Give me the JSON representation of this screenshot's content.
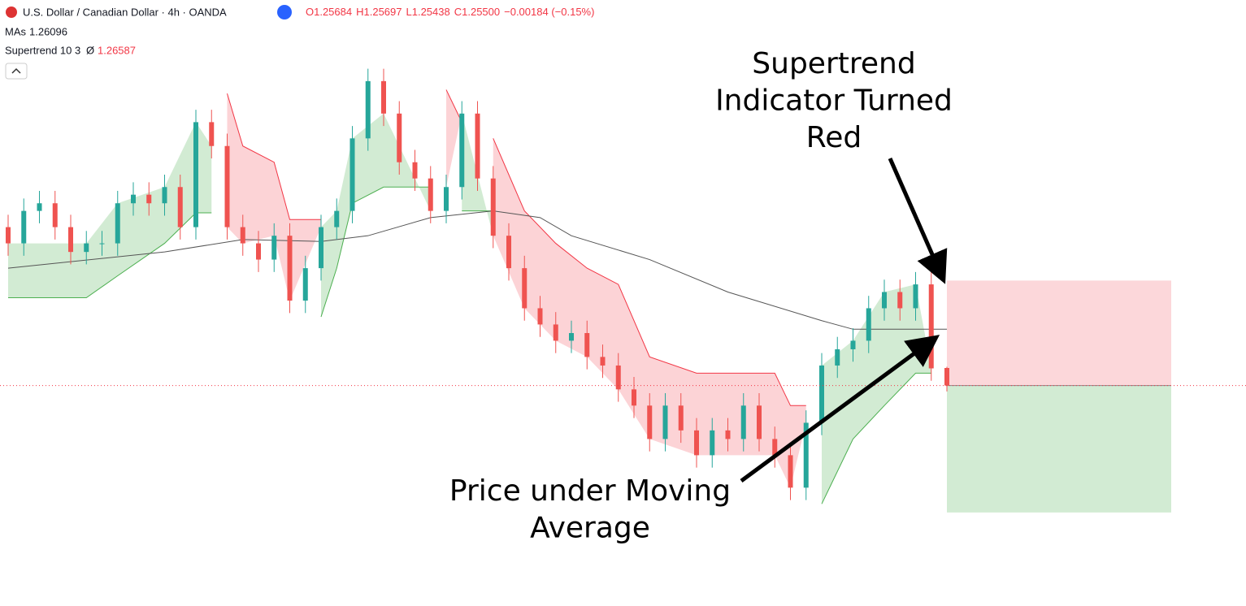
{
  "header": {
    "title": "U.S. Dollar / Canadian Dollar · 4h · OANDA",
    "ohlc": [
      "O1.25684",
      "H1.25697",
      "L1.25438",
      "C1.25500",
      "−0.00184 (−0.15%)"
    ],
    "ma_label": "MAs",
    "ma_value": 1.26096,
    "st_label": "Supertrend 10 3",
    "st_sep": "Ø",
    "st_value": 1.26587
  },
  "chart_data": {
    "type": "candlestick",
    "ylim": [
      1.2319,
      1.2954
    ],
    "up_color": "#26a69a",
    "down_color": "#ef5350",
    "candles": [
      [
        1.2716,
        1.2729,
        1.2686,
        1.2699
      ],
      [
        1.2699,
        1.2746,
        1.2686,
        1.2733
      ],
      [
        1.2733,
        1.2754,
        1.272,
        1.2741
      ],
      [
        1.2741,
        1.2754,
        1.2703,
        1.2716
      ],
      [
        1.2716,
        1.2729,
        1.2677,
        1.269
      ],
      [
        1.269,
        1.2712,
        1.2677,
        1.2699
      ],
      [
        1.2699,
        1.2712,
        1.2686,
        1.2699
      ],
      [
        1.2699,
        1.2754,
        1.2686,
        1.2741
      ],
      [
        1.2741,
        1.2763,
        1.2728,
        1.275
      ],
      [
        1.275,
        1.2763,
        1.2728,
        1.2741
      ],
      [
        1.2741,
        1.2771,
        1.2728,
        1.2758
      ],
      [
        1.2758,
        1.2771,
        1.2703,
        1.2716
      ],
      [
        1.2716,
        1.2839,
        1.2703,
        1.2826
      ],
      [
        1.2826,
        1.2839,
        1.2788,
        1.2801
      ],
      [
        1.2801,
        1.2814,
        1.2703,
        1.2716
      ],
      [
        1.2716,
        1.2729,
        1.2686,
        1.2699
      ],
      [
        1.2699,
        1.2712,
        1.2669,
        1.2682
      ],
      [
        1.2682,
        1.272,
        1.2669,
        1.2707
      ],
      [
        1.2707,
        1.272,
        1.2626,
        1.2639
      ],
      [
        1.2639,
        1.2686,
        1.2626,
        1.2673
      ],
      [
        1.2673,
        1.2729,
        1.266,
        1.2716
      ],
      [
        1.2716,
        1.2746,
        1.2703,
        1.2733
      ],
      [
        1.2733,
        1.2822,
        1.272,
        1.2809
      ],
      [
        1.2809,
        1.2882,
        1.2796,
        1.2869
      ],
      [
        1.2869,
        1.2882,
        1.2822,
        1.2835
      ],
      [
        1.2835,
        1.2848,
        1.2771,
        1.2784
      ],
      [
        1.2784,
        1.2797,
        1.2754,
        1.2767
      ],
      [
        1.2767,
        1.278,
        1.272,
        1.2733
      ],
      [
        1.2733,
        1.2771,
        1.272,
        1.2758
      ],
      [
        1.2758,
        1.2848,
        1.2745,
        1.2835
      ],
      [
        1.2835,
        1.2848,
        1.2754,
        1.2767
      ],
      [
        1.2767,
        1.278,
        1.2694,
        1.2707
      ],
      [
        1.2707,
        1.272,
        1.266,
        1.2673
      ],
      [
        1.2673,
        1.2686,
        1.2618,
        1.2631
      ],
      [
        1.2631,
        1.2644,
        1.2601,
        1.2614
      ],
      [
        1.2614,
        1.2627,
        1.2584,
        1.2597
      ],
      [
        1.2597,
        1.2618,
        1.2584,
        1.2605
      ],
      [
        1.2605,
        1.2618,
        1.2567,
        1.258
      ],
      [
        1.258,
        1.2593,
        1.2558,
        1.2571
      ],
      [
        1.2571,
        1.2584,
        1.2533,
        1.2546
      ],
      [
        1.2546,
        1.2559,
        1.2516,
        1.2529
      ],
      [
        1.2529,
        1.2542,
        1.2481,
        1.2494
      ],
      [
        1.2494,
        1.2542,
        1.2481,
        1.2529
      ],
      [
        1.2529,
        1.2542,
        1.249,
        1.2503
      ],
      [
        1.2503,
        1.2516,
        1.2464,
        1.2477
      ],
      [
        1.2477,
        1.2516,
        1.2464,
        1.2503
      ],
      [
        1.2503,
        1.2516,
        1.2481,
        1.2494
      ],
      [
        1.2494,
        1.2542,
        1.2481,
        1.2529
      ],
      [
        1.2529,
        1.2542,
        1.2481,
        1.2494
      ],
      [
        1.2494,
        1.2507,
        1.2464,
        1.2477
      ],
      [
        1.2477,
        1.249,
        1.243,
        1.2443
      ],
      [
        1.2443,
        1.2524,
        1.243,
        1.2511
      ],
      [
        1.2511,
        1.2584,
        1.2498,
        1.2571
      ],
      [
        1.2571,
        1.2601,
        1.2558,
        1.2588
      ],
      [
        1.2588,
        1.261,
        1.2575,
        1.2597
      ],
      [
        1.2597,
        1.2644,
        1.2584,
        1.2631
      ],
      [
        1.2631,
        1.2661,
        1.2618,
        1.2648
      ],
      [
        1.2648,
        1.2661,
        1.2618,
        1.2631
      ],
      [
        1.2631,
        1.2669,
        1.2618,
        1.2656
      ],
      [
        1.2656,
        1.2669,
        1.2555,
        1.2568
      ],
      [
        1.25684,
        1.25697,
        1.25438,
        1.255
      ]
    ],
    "ma": {
      "color": "#555555",
      "x": [
        0,
        10,
        15,
        20,
        23,
        27,
        31,
        34,
        36,
        41,
        46,
        52,
        54,
        60
      ],
      "values": [
        1.2673,
        1.269,
        1.2703,
        1.2701,
        1.2707,
        1.2726,
        1.2733,
        1.2726,
        1.2707,
        1.2682,
        1.2648,
        1.2618,
        1.2609,
        1.2609
      ]
    },
    "supertrend": [
      {
        "color": "#4caf50",
        "fill": "rgba(76,175,80,0.25)",
        "x": [
          0,
          5,
          7,
          10,
          12,
          13,
          null,
          20,
          21,
          22,
          24,
          27,
          null,
          29,
          31,
          null,
          52,
          54,
          56,
          58,
          59
        ],
        "values": [
          1.2642,
          1.2642,
          1.2665,
          1.2699,
          1.2731,
          1.2731,
          null,
          1.2622,
          1.2673,
          1.2741,
          1.2758,
          1.2758,
          null,
          1.2733,
          1.2733,
          null,
          1.2426,
          1.2494,
          1.2529,
          1.2563,
          1.2563
        ]
      },
      {
        "color": "#f23645",
        "fill": "rgba(242,54,69,0.22)",
        "x": [
          14,
          15,
          17,
          18,
          20,
          null,
          28,
          29,
          null,
          31,
          33,
          35,
          37,
          39,
          41,
          44,
          49,
          50,
          51,
          null,
          60
        ],
        "values": [
          1.2856,
          1.2801,
          1.2784,
          1.2724,
          1.2724,
          null,
          1.286,
          1.2826,
          null,
          1.2809,
          1.2733,
          1.2699,
          1.2673,
          1.2656,
          1.258,
          1.2563,
          1.2563,
          1.2529,
          1.2529,
          null,
          1.266
        ]
      }
    ],
    "position": {
      "stop": 1.266,
      "entry": 1.255,
      "target": 1.2417,
      "stop_color": "rgba(242,54,69,0.2)",
      "target_color": "rgba(76,175,80,0.25)"
    },
    "annotations": [
      {
        "lines": [
          "Supertrend",
          "Indicator Turned",
          "Red"
        ]
      },
      {
        "lines": [
          "Price under Moving",
          "Average"
        ]
      }
    ]
  }
}
